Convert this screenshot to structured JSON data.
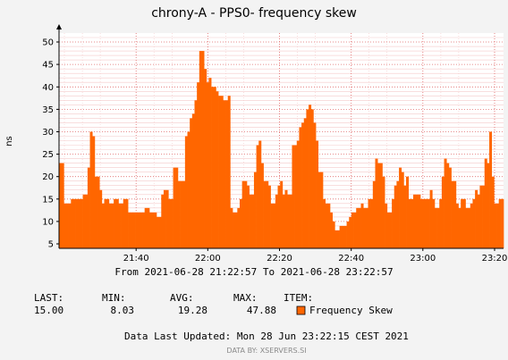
{
  "chart_data": {
    "type": "area",
    "title": "chrony-A - PPS0- frequency skew",
    "ylabel": "ns",
    "ylim": [
      4,
      52
    ],
    "yticks": [
      5,
      10,
      15,
      20,
      25,
      30,
      35,
      40,
      45,
      50
    ],
    "x_tick_labels": [
      "21:40",
      "22:00",
      "22:20",
      "22:40",
      "23:00",
      "23:20"
    ],
    "grid": true,
    "series": [
      {
        "name": "Frequency Skew",
        "color": "#ff6600",
        "edge_color": "#cc4400",
        "values": [
          23,
          23,
          14,
          14,
          14,
          15,
          15,
          15,
          15,
          15,
          16,
          16,
          22,
          30,
          29,
          20,
          20,
          17,
          14,
          15,
          15,
          14,
          14,
          15,
          15,
          14,
          14,
          15,
          15,
          12,
          12,
          12,
          12,
          12,
          12,
          12,
          13,
          13,
          12,
          12,
          12,
          11,
          11,
          16,
          17,
          17,
          15,
          15,
          22,
          22,
          19,
          19,
          19,
          29,
          30,
          33,
          34,
          37,
          41,
          48,
          48,
          44,
          41,
          42,
          40,
          40,
          39,
          38,
          38,
          37,
          37,
          38,
          13,
          12,
          12,
          13,
          15,
          19,
          19,
          18,
          16,
          16,
          21,
          27,
          28,
          23,
          19,
          19,
          18,
          14,
          14,
          16,
          18,
          19,
          16,
          17,
          16,
          16,
          27,
          27,
          28,
          31,
          32,
          33,
          35,
          36,
          35,
          32,
          28,
          21,
          21,
          15,
          14,
          14,
          12,
          10,
          8,
          8,
          9,
          9,
          9,
          10,
          11,
          12,
          12,
          13,
          13,
          14,
          13,
          13,
          15,
          15,
          19,
          24,
          23,
          23,
          20,
          14,
          12,
          12,
          15,
          18,
          19,
          22,
          21,
          18,
          20,
          15,
          15,
          16,
          16,
          16,
          15,
          15,
          15,
          15,
          17,
          15,
          13,
          13,
          15,
          20,
          24,
          23,
          22,
          19,
          19,
          14,
          13,
          15,
          15,
          13,
          13,
          14,
          15,
          17,
          16,
          18,
          18,
          24,
          23,
          30,
          20,
          14,
          14,
          15,
          15
        ]
      }
    ]
  },
  "header": {
    "range_text": "From 2021-06-28 21:22:57 To 2021-06-28 23:22:57"
  },
  "legend": {
    "col_last": "LAST:",
    "col_min": "MIN:",
    "col_avg": "AVG:",
    "col_max": "MAX:",
    "col_item": "ITEM:",
    "last": "15.00",
    "min": "8.03",
    "avg": "19.28",
    "max": "47.88",
    "item": "Frequency Skew"
  },
  "footer": {
    "updated": "Data Last Updated: Mon 28 Jun 23:22:15 CEST 2021",
    "credit": "DATA BY: XSERVERS.SI"
  }
}
